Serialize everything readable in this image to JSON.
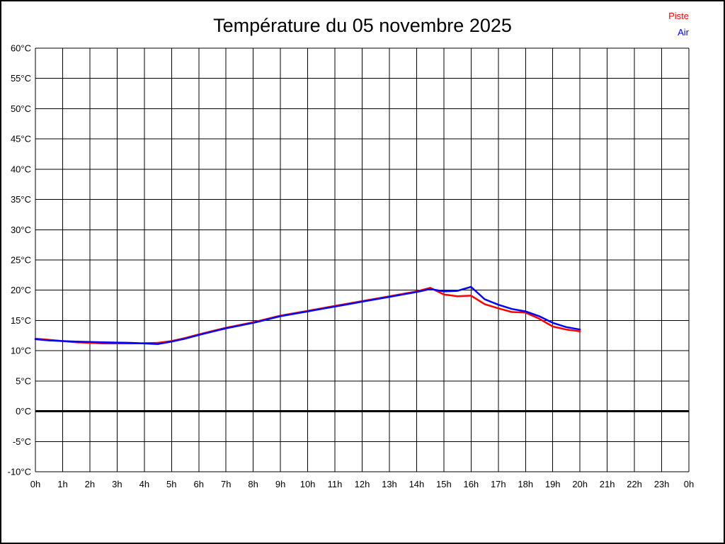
{
  "header": {
    "title": "Température du 05 novembre 2025"
  },
  "legend": [
    {
      "label": "Piste",
      "color": "#ff0000"
    },
    {
      "label": "Air",
      "color": "#0000ff"
    }
  ],
  "chart_data": {
    "type": "line",
    "title": "Température du 05 novembre 2025",
    "grid": true,
    "legend_position": "top-right",
    "x_range": [
      0,
      24
    ],
    "x_tick_labels": [
      "0h",
      "1h",
      "2h",
      "3h",
      "4h",
      "5h",
      "6h",
      "7h",
      "8h",
      "9h",
      "10h",
      "11h",
      "12h",
      "13h",
      "14h",
      "15h",
      "16h",
      "17h",
      "18h",
      "19h",
      "20h",
      "21h",
      "22h",
      "23h",
      "0h"
    ],
    "ylim": [
      -10,
      60
    ],
    "y_tick_values": [
      60,
      55,
      50,
      45,
      40,
      35,
      30,
      25,
      20,
      15,
      10,
      5,
      0,
      -5,
      -10
    ],
    "y_tick_labels": [
      "60°C",
      "55°C",
      "50°C",
      "45°C",
      "40°C",
      "35°C",
      "30°C",
      "25°C",
      "20°C",
      "15°C",
      "10°C",
      "5°C",
      "0°C",
      "-5°C",
      "-10°C"
    ],
    "zero_line_value": 0,
    "colors": {
      "grid": "#000000",
      "zero_line": "#000000",
      "background": "#ffffff",
      "text": "#000000"
    },
    "series": [
      {
        "name": "Piste",
        "color": "#ff0000",
        "x": [
          0,
          0.5,
          1,
          1.5,
          2,
          2.5,
          3,
          3.5,
          4,
          4.5,
          5,
          5.5,
          6,
          6.5,
          7,
          7.5,
          8,
          8.5,
          9,
          9.5,
          10,
          10.5,
          11,
          11.5,
          12,
          12.5,
          13,
          13.5,
          14,
          14.5,
          15,
          15.5,
          16,
          16.5,
          17,
          17.5,
          18,
          18.5,
          19,
          19.5,
          20
        ],
        "values": [
          12,
          11.8,
          11.6,
          11.4,
          11.3,
          11.2,
          11.2,
          11.2,
          11.25,
          11.3,
          11.6,
          12.1,
          12.7,
          13.25,
          13.8,
          14.25,
          14.7,
          15.25,
          15.8,
          16.2,
          16.6,
          17,
          17.4,
          17.8,
          18.2,
          18.6,
          19,
          19.4,
          19.8,
          20.4,
          19.3,
          19,
          19.1,
          17.7,
          17,
          16.4,
          16.3,
          15.3,
          14,
          13.5,
          13.2
        ]
      },
      {
        "name": "Air",
        "color": "#0000ff",
        "x": [
          0,
          0.5,
          1,
          1.5,
          2,
          2.5,
          3,
          3.5,
          4,
          4.5,
          5,
          5.5,
          6,
          6.5,
          7,
          7.5,
          8,
          8.5,
          9,
          9.5,
          10,
          10.5,
          11,
          11.5,
          12,
          12.5,
          13,
          13.5,
          14,
          14.5,
          15,
          15.5,
          16,
          16.5,
          17,
          17.5,
          18,
          18.5,
          19,
          19.5,
          20
        ],
        "values": [
          11.9,
          11.7,
          11.6,
          11.5,
          11.45,
          11.4,
          11.35,
          11.3,
          11.2,
          11.1,
          11.5,
          12,
          12.6,
          13.15,
          13.7,
          14.15,
          14.6,
          15.15,
          15.7,
          16.1,
          16.5,
          16.9,
          17.3,
          17.7,
          18.1,
          18.5,
          18.9,
          19.3,
          19.7,
          20.2,
          19.8,
          19.9,
          20.55,
          18.5,
          17.6,
          16.9,
          16.5,
          15.7,
          14.6,
          13.9,
          13.5
        ]
      }
    ]
  }
}
